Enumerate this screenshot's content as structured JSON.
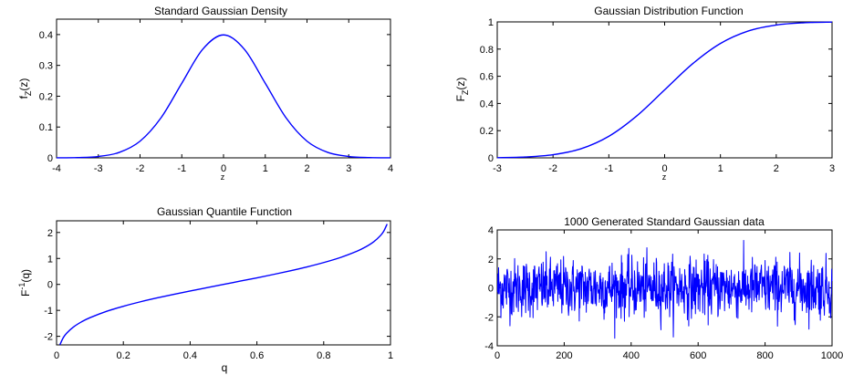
{
  "chart_data": [
    {
      "type": "line",
      "title": "Standard Gaussian Density",
      "xlabel": "z",
      "ylabel": "f_Z(z)",
      "xlim": [
        -4,
        4
      ],
      "ylim": [
        0,
        0.45
      ],
      "xticks": [
        "-4",
        "-3",
        "-2",
        "-1",
        "0",
        "1",
        "2",
        "3",
        "4"
      ],
      "yticks": [
        "0",
        "0.1",
        "0.2",
        "0.3",
        "0.4"
      ],
      "grid": false,
      "series": [
        {
          "color": "#0000ff",
          "x": [
            -4,
            -3.5,
            -3,
            -2.5,
            -2,
            -1.5,
            -1,
            -0.5,
            0,
            0.5,
            1,
            1.5,
            2,
            2.5,
            3,
            3.5,
            4
          ],
          "y": [
            0.0001,
            0.0009,
            0.0044,
            0.0175,
            0.054,
            0.1295,
            0.242,
            0.3521,
            0.3989,
            0.3521,
            0.242,
            0.1295,
            0.054,
            0.0175,
            0.0044,
            0.0009,
            0.0001
          ]
        }
      ]
    },
    {
      "type": "line",
      "title": "Gaussian Distribution Function",
      "xlabel": "z",
      "ylabel": "F_Z(z)",
      "xlim": [
        -3,
        3
      ],
      "ylim": [
        0,
        1
      ],
      "xticks": [
        "-3",
        "-2",
        "-1",
        "0",
        "1",
        "2",
        "3"
      ],
      "yticks": [
        "0",
        "0.2",
        "0.4",
        "0.6",
        "0.8",
        "1"
      ],
      "grid": false,
      "series": [
        {
          "color": "#0000ff",
          "x": [
            -3,
            -2.5,
            -2,
            -1.5,
            -1,
            -0.5,
            0,
            0.5,
            1,
            1.5,
            2,
            2.5,
            3
          ],
          "y": [
            0.0013,
            0.0062,
            0.0228,
            0.0668,
            0.1587,
            0.3085,
            0.5,
            0.6915,
            0.8413,
            0.9332,
            0.9772,
            0.9938,
            0.9987
          ]
        }
      ]
    },
    {
      "type": "line",
      "title": "Gaussian Quantile Function",
      "xlabel": "q",
      "ylabel": "F^-1(q)",
      "xlim": [
        0,
        1
      ],
      "ylim": [
        -2.33,
        2.45
      ],
      "xticks": [
        "0",
        "0.2",
        "0.4",
        "0.6",
        "0.8",
        "1"
      ],
      "yticks": [
        "-2",
        "-1",
        "0",
        "1",
        "2"
      ],
      "grid": false,
      "series": [
        {
          "color": "#0000ff",
          "x": [
            0.01,
            0.02,
            0.03,
            0.05,
            0.075,
            0.1,
            0.15,
            0.2,
            0.25,
            0.3,
            0.35,
            0.4,
            0.45,
            0.5,
            0.55,
            0.6,
            0.65,
            0.7,
            0.75,
            0.8,
            0.85,
            0.9,
            0.925,
            0.95,
            0.97,
            0.98,
            0.99
          ],
          "y": [
            -2.326,
            -2.054,
            -1.881,
            -1.645,
            -1.44,
            -1.282,
            -1.036,
            -0.842,
            -0.674,
            -0.524,
            -0.385,
            -0.253,
            -0.126,
            0,
            0.126,
            0.253,
            0.385,
            0.524,
            0.674,
            0.842,
            1.036,
            1.282,
            1.44,
            1.645,
            1.881,
            2.054,
            2.326
          ]
        }
      ]
    },
    {
      "type": "line",
      "title": "1000 Generated Standard Gaussian data",
      "xlabel": "",
      "ylabel": "",
      "xlim": [
        0,
        1000
      ],
      "ylim": [
        -4,
        4
      ],
      "xticks": [
        "0",
        "200",
        "400",
        "600",
        "800",
        "1000"
      ],
      "yticks": [
        "-4",
        "-2",
        "0",
        "2",
        "4"
      ],
      "grid": false,
      "series": [
        {
          "color": "#0000ff",
          "n": 1000,
          "mean": 0,
          "std": 1,
          "min": -3.6,
          "max": 3.3
        }
      ]
    }
  ]
}
